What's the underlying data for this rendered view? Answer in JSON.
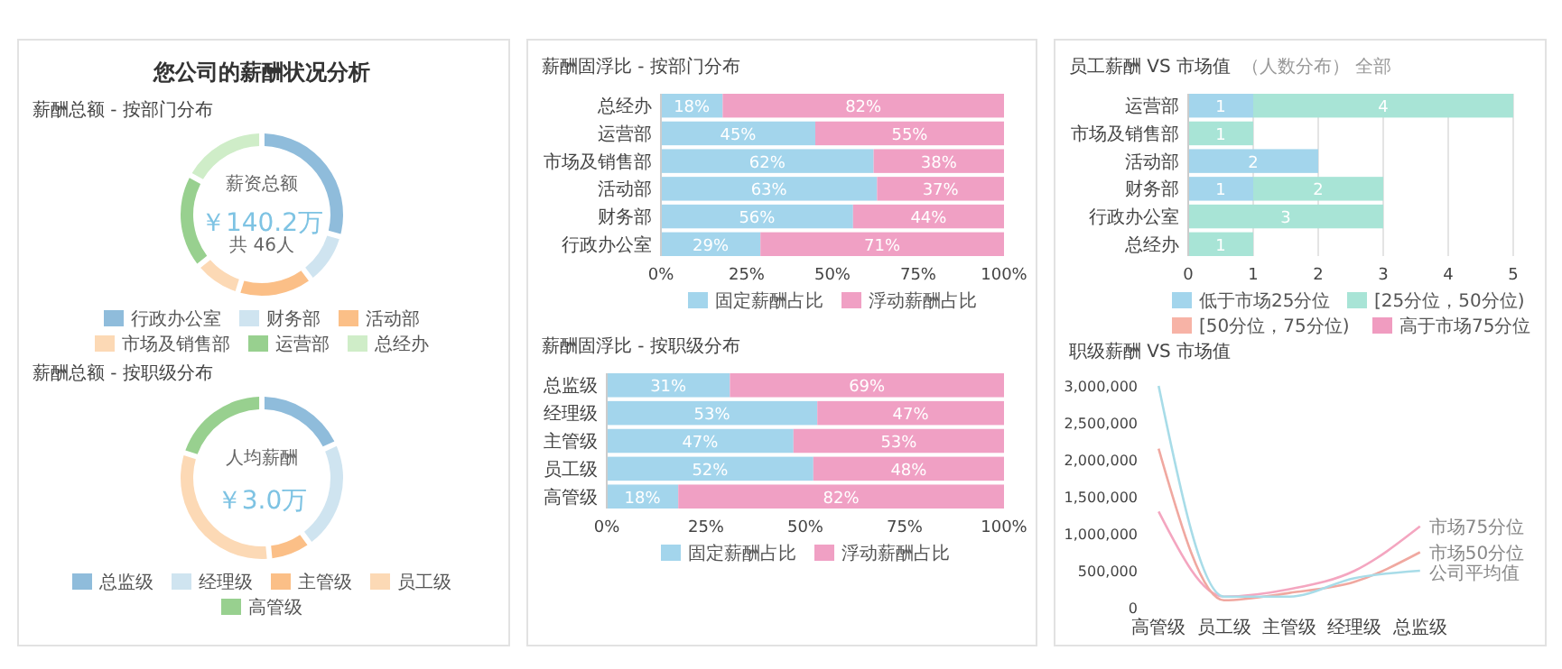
{
  "chart_data": [
    {
      "type": "donut",
      "title": "您公司的薪酬状况分析",
      "subtitle": "薪酬总额 - 按部门分布",
      "annotations": [
        "薪资总额",
        "￥140.2万",
        "共 46人"
      ],
      "categories": [
        "行政办公室",
        "财务部",
        "活动部",
        "市场及销售部",
        "运营部",
        "总经办"
      ],
      "values": [
        30,
        10,
        15,
        9,
        19,
        17
      ],
      "colors": [
        "#8fbcdb",
        "#cfe4f0",
        "#fbbf87",
        "#fcd9b5",
        "#98d08f",
        "#cfedc8"
      ],
      "legend": "bottom"
    },
    {
      "type": "donut",
      "subtitle": "薪酬总额 - 按职级分布",
      "annotations": [
        "人均薪酬",
        "￥3.0万"
      ],
      "categories": [
        "总监级",
        "经理级",
        "主管级",
        "员工级",
        "高管级"
      ],
      "values": [
        18,
        22,
        8,
        32,
        20
      ],
      "colors": [
        "#8fbcdb",
        "#cfe4f0",
        "#fbbf87",
        "#fcd9b5",
        "#98d08f"
      ],
      "legend": "bottom"
    },
    {
      "type": "bar",
      "orientation": "horizontal",
      "stacked": true,
      "title": "薪酬固浮比 - 按部门分布",
      "categories": [
        "总经办",
        "运营部",
        "市场及销售部",
        "活动部",
        "财务部",
        "行政办公室"
      ],
      "series": [
        {
          "name": "固定薪酬占比",
          "color": "#a3d5ec",
          "values": [
            18,
            45,
            62,
            63,
            56,
            29
          ],
          "value_labels": [
            "18%",
            "45%",
            "62%",
            "63%",
            "56%",
            "29%"
          ]
        },
        {
          "name": "浮动薪酬占比",
          "color": "#f0a0c4",
          "values": [
            82,
            55,
            38,
            37,
            44,
            71
          ],
          "value_labels": [
            "82%",
            "55%",
            "38%",
            "37%",
            "44%",
            "71%"
          ]
        }
      ],
      "xlim": [
        0,
        100
      ],
      "xticks": [
        {
          "value": 0,
          "label": "0%"
        },
        {
          "value": 25,
          "label": "25%"
        },
        {
          "value": 50,
          "label": "50%"
        },
        {
          "value": 75,
          "label": "75%"
        },
        {
          "value": 100,
          "label": "100%"
        }
      ],
      "legend": "bottom"
    },
    {
      "type": "bar",
      "orientation": "horizontal",
      "stacked": true,
      "title": "薪酬固浮比 - 按职级分布",
      "categories": [
        "总监级",
        "经理级",
        "主管级",
        "员工级",
        "高管级"
      ],
      "series": [
        {
          "name": "固定薪酬占比",
          "color": "#a3d5ec",
          "values": [
            31,
            53,
            47,
            52,
            18
          ],
          "value_labels": [
            "31%",
            "53%",
            "47%",
            "52%",
            "18%"
          ]
        },
        {
          "name": "浮动薪酬占比",
          "color": "#f0a0c4",
          "values": [
            69,
            47,
            53,
            48,
            82
          ],
          "value_labels": [
            "69%",
            "47%",
            "53%",
            "48%",
            "82%"
          ]
        }
      ],
      "xlim": [
        0,
        100
      ],
      "xticks": [
        {
          "value": 0,
          "label": "0%"
        },
        {
          "value": 25,
          "label": "25%"
        },
        {
          "value": 50,
          "label": "50%"
        },
        {
          "value": 75,
          "label": "75%"
        },
        {
          "value": 100,
          "label": "100%"
        }
      ],
      "legend": "bottom"
    },
    {
      "type": "bar",
      "orientation": "horizontal",
      "stacked": true,
      "title": "员工薪酬 VS 市场值",
      "subtitle": "（人数分布） 全部",
      "categories": [
        "运营部",
        "市场及销售部",
        "活动部",
        "财务部",
        "行政办公室",
        "总经办"
      ],
      "series": [
        {
          "name": "低于市场25分位",
          "color": "#a3d5ec",
          "values": [
            1,
            null,
            2,
            1,
            null,
            null
          ]
        },
        {
          "name": "[25分位，50分位)",
          "color": "#a8e4d6",
          "values": [
            4,
            1,
            null,
            2,
            3,
            1
          ]
        },
        {
          "name": "[50分位，75分位)",
          "color": "#f7b3a6",
          "values": [
            null,
            null,
            null,
            null,
            null,
            null
          ]
        },
        {
          "name": "高于市场75分位",
          "color": "#f09cc0",
          "values": [
            null,
            null,
            null,
            null,
            null,
            null
          ]
        }
      ],
      "xlim": [
        0,
        5
      ],
      "xticks": [
        0,
        1,
        2,
        3,
        4,
        5
      ],
      "grid": "x",
      "data_labels": true,
      "legend": "bottom"
    },
    {
      "type": "line",
      "title": "职级薪酬 VS 市场值",
      "categories": [
        "高管级",
        "员工级",
        "主管级",
        "经理级",
        "总监级"
      ],
      "series": [
        {
          "name": "市场75分位",
          "color": "#f4a6c0",
          "values": [
            1300000,
            150000,
            250000,
            500000,
            1100000
          ]
        },
        {
          "name": "市场50分位",
          "color": "#f0a8a0",
          "values": [
            2150000,
            100000,
            200000,
            350000,
            750000
          ]
        },
        {
          "name": "公司平均值",
          "color": "#a8dce8",
          "values": [
            3000000,
            150000,
            150000,
            400000,
            500000
          ]
        }
      ],
      "ylim": [
        0,
        3000000
      ],
      "yticks": [
        0,
        {
          "value": 500000,
          "label": "500,000"
        },
        {
          "value": 1000000,
          "label": "1,000,000"
        },
        {
          "value": 1500000,
          "label": "1,500,000"
        },
        {
          "value": 2000000,
          "label": "2,000,000"
        },
        {
          "value": 2500000,
          "label": "2,500,000"
        },
        {
          "value": 3000000,
          "label": "3,000,000"
        }
      ],
      "legend": false
    }
  ]
}
